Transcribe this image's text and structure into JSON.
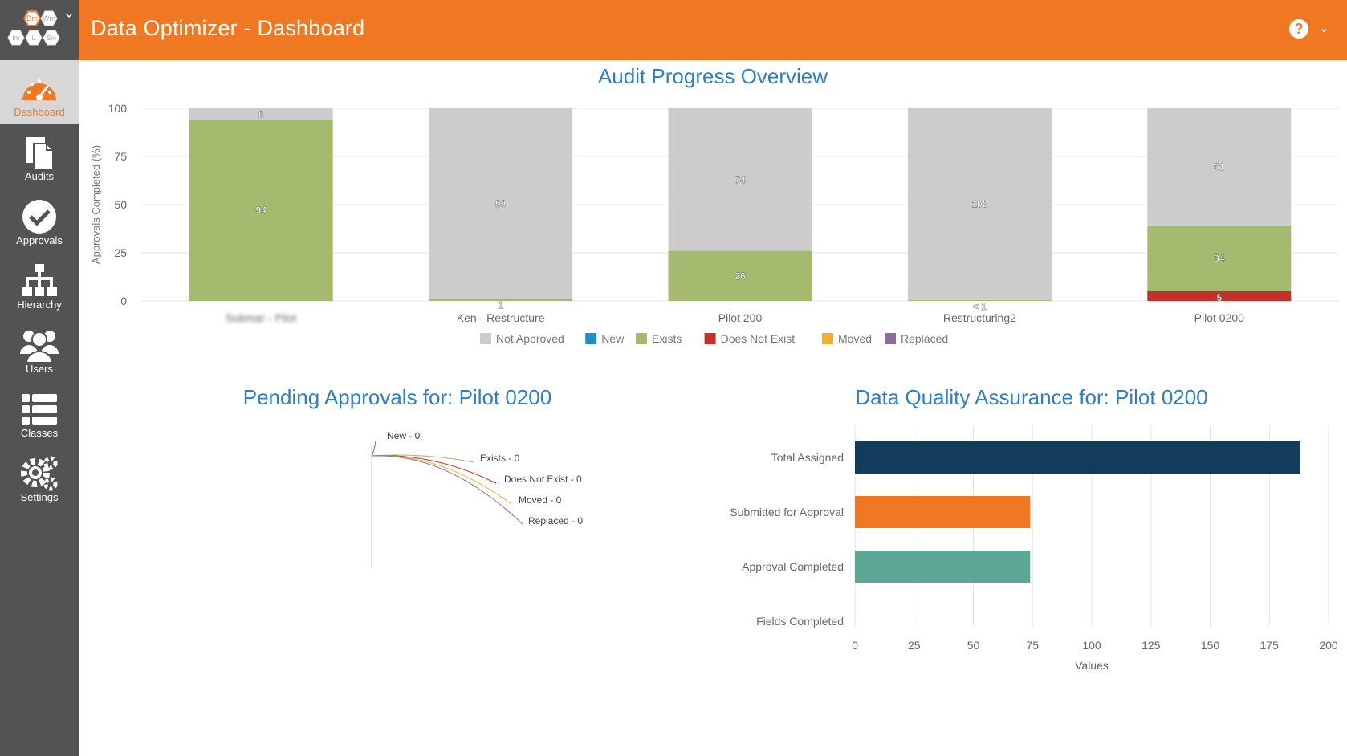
{
  "header": {
    "title": "Data Optimizer - Dashboard",
    "help_glyph": "?",
    "dropdown_glyph": "⌄"
  },
  "logo": {
    "cells": [
      "Dm",
      "Wm",
      "Im",
      "L",
      "Sm"
    ]
  },
  "sidebar": {
    "items": [
      {
        "label": "Dashboard",
        "icon": "gauge-icon",
        "active": true
      },
      {
        "label": "Audits",
        "icon": "documents-icon",
        "active": false
      },
      {
        "label": "Approvals",
        "icon": "checkmark-circle-icon",
        "active": false
      },
      {
        "label": "Hierarchy",
        "icon": "org-chart-icon",
        "active": false
      },
      {
        "label": "Users",
        "icon": "users-icon",
        "active": false
      },
      {
        "label": "Classes",
        "icon": "list-icon",
        "active": false
      },
      {
        "label": "Settings",
        "icon": "gears-icon",
        "active": false
      }
    ]
  },
  "colors": {
    "accent": "#f07822",
    "sidebar": "#535353",
    "title_blue": "#2d7fc4",
    "not_approved": "#cccccc",
    "new": "#1f8fc8",
    "exists": "#a4ba6f",
    "does_not_exist": "#c4302b",
    "moved": "#f0b032",
    "replaced": "#8c6e9a",
    "navy": "#123c5a",
    "teal": "#5ba794"
  },
  "chart_data": [
    {
      "type": "bar",
      "stacked": true,
      "title": "Audit Progress Overview",
      "ylabel": "Approvals Completed (%)",
      "ylim": [
        0,
        100
      ],
      "yticks": [
        "0",
        "25",
        "50",
        "75",
        "100"
      ],
      "categories": [
        "Submar - Pilot",
        "Ken - Restructure",
        "Pilot 200",
        "Restructuring2",
        "Pilot 0200"
      ],
      "series": [
        {
          "name": "Does Not Exist",
          "values": [
            0,
            0,
            0,
            0,
            5
          ],
          "labels": [
            "",
            "",
            "",
            "",
            "5"
          ]
        },
        {
          "name": "Exists",
          "values": [
            94,
            1,
            26,
            0.5,
            34
          ],
          "labels": [
            "94",
            "1",
            "26",
            "< 1",
            "34"
          ]
        },
        {
          "name": "Not Approved",
          "values": [
            6,
            99,
            74,
            99.5,
            61
          ],
          "labels": [
            "6",
            "99",
            "74",
            "100",
            "61"
          ]
        }
      ],
      "legend": [
        "Not Approved",
        "New",
        "Exists",
        "Does Not Exist",
        "Moved",
        "Replaced"
      ],
      "legend_position": "bottom"
    },
    {
      "type": "pie",
      "title": "Pending Approvals for: Pilot 0200",
      "slices": [
        {
          "label": "New - 0",
          "value": 0
        },
        {
          "label": "Exists - 0",
          "value": 0
        },
        {
          "label": "Does Not Exist - 0",
          "value": 0
        },
        {
          "label": "Moved - 0",
          "value": 0
        },
        {
          "label": "Replaced - 0",
          "value": 0
        }
      ]
    },
    {
      "type": "bar",
      "orientation": "horizontal",
      "title": "Data Quality Assurance for: Pilot 0200",
      "categories": [
        "Total Assigned",
        "Submitted for Approval",
        "Approval Completed",
        "Fields Completed"
      ],
      "values": [
        188,
        74,
        74,
        0
      ],
      "xlabel": "Values",
      "xlim": [
        0,
        200
      ],
      "xticks": [
        "0",
        "25",
        "50",
        "75",
        "100",
        "125",
        "150",
        "175",
        "200"
      ]
    }
  ]
}
